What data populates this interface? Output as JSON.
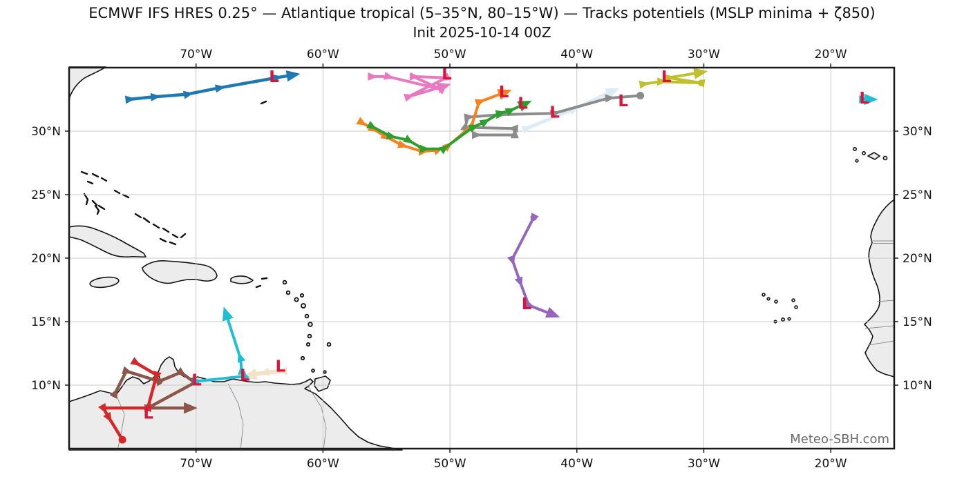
{
  "figure": {
    "title": "ECMWF IFS HRES 0.25° — Atlantique tropical (5–35°N, 80–15°W) — Tracks potentiels (MSLP minima + ζ850)",
    "subtitle": "Init 2025-10-14 00Z",
    "watermark": "Meteo-SBH.com"
  },
  "axes": {
    "extent": {
      "west_lon": 80,
      "east_lon": 15,
      "south_lat": 5,
      "north_lat": 35
    },
    "lon_ticks": [
      {
        "value": 70,
        "label": "70°W"
      },
      {
        "value": 60,
        "label": "60°W"
      },
      {
        "value": 50,
        "label": "50°W"
      },
      {
        "value": 40,
        "label": "40°W"
      },
      {
        "value": 30,
        "label": "30°W"
      },
      {
        "value": 20,
        "label": "20°W"
      }
    ],
    "lat_ticks": [
      {
        "value": 30,
        "label": "30°N"
      },
      {
        "value": 25,
        "label": "25°N"
      },
      {
        "value": 20,
        "label": "20°N"
      },
      {
        "value": 15,
        "label": "15°N"
      },
      {
        "value": 10,
        "label": "10°N"
      }
    ],
    "grid": true,
    "grid_color": "#c9c9c9"
  },
  "land": {
    "fill": "#ececec",
    "coast_color": "#111111",
    "border_color": "#8a8a8a"
  },
  "chart_data": {
    "type": "map-tracks",
    "projection": "equirectangular",
    "units": "points are [longitude_degW, latitude_degN]",
    "extent": {
      "west": 80,
      "east": 15,
      "south": 5,
      "north": 35
    },
    "low_marker": {
      "symbol": "L",
      "color": "#dc143c"
    },
    "tracks": [
      {
        "id": "wheat",
        "color": "#f3e2c8",
        "width": 6,
        "end": "arrow",
        "points": [
          [
            63.1,
            11.1
          ],
          [
            64.5,
            11.0
          ],
          [
            65.6,
            10.8
          ]
        ],
        "lows": [
          [
            63.3,
            11.5
          ]
        ],
        "dots": []
      },
      {
        "id": "pale-blue",
        "color": "#dcebf8",
        "width": 5,
        "end": "arrow",
        "points": [
          [
            44.0,
            30.2
          ],
          [
            40.3,
            31.7
          ],
          [
            37.3,
            33.1
          ]
        ],
        "lows": [],
        "dots": []
      },
      {
        "id": "gray",
        "color": "#8c8c8c",
        "width": 4,
        "end": "dot",
        "points": [
          [
            48.0,
            29.7
          ],
          [
            44.9,
            29.7
          ],
          [
            44.9,
            30.2
          ],
          [
            48.8,
            30.3
          ],
          [
            48.6,
            31.1
          ],
          [
            46.1,
            31.3
          ],
          [
            41.8,
            31.4
          ],
          [
            37.5,
            32.6
          ],
          [
            35.0,
            32.8
          ]
        ],
        "lows": [
          [
            41.7,
            31.5
          ],
          [
            36.3,
            32.4
          ]
        ],
        "dots": []
      },
      {
        "id": "pink",
        "color": "#e879c1",
        "width": 4,
        "end": "arrow",
        "points": [
          [
            56.2,
            34.3
          ],
          [
            54.9,
            34.3
          ],
          [
            50.7,
            33.3
          ],
          [
            52.9,
            34.3
          ],
          [
            50.3,
            34.2
          ],
          [
            53.3,
            32.7
          ],
          [
            50.6,
            33.5
          ]
        ],
        "lows": [
          [
            50.2,
            34.5
          ]
        ],
        "dots": []
      },
      {
        "id": "orange",
        "color": "#f5821f",
        "width": 4,
        "end": "arrow",
        "points": [
          [
            57.0,
            30.7
          ],
          [
            56.1,
            30.2
          ],
          [
            55.1,
            29.6
          ],
          [
            53.8,
            28.9
          ],
          [
            52.2,
            28.4
          ],
          [
            51.0,
            28.5
          ],
          [
            50.2,
            28.8
          ],
          [
            48.3,
            30.4
          ],
          [
            47.7,
            32.3
          ],
          [
            45.8,
            33.0
          ]
        ],
        "lows": [
          [
            45.7,
            33.1
          ]
        ],
        "dots": []
      },
      {
        "id": "green",
        "color": "#2ca02c",
        "width": 4,
        "end": "arrow",
        "points": [
          [
            56.2,
            30.4
          ],
          [
            54.7,
            29.6
          ],
          [
            53.3,
            29.3
          ],
          [
            52.1,
            28.6
          ],
          [
            50.5,
            28.6
          ],
          [
            48.2,
            30.3
          ],
          [
            47.3,
            30.7
          ],
          [
            46.1,
            31.4
          ],
          [
            45.3,
            31.6
          ],
          [
            44.2,
            32.1
          ]
        ],
        "lows": [
          [
            44.2,
            32.2
          ]
        ],
        "dots": []
      },
      {
        "id": "olive",
        "color": "#bfc02c",
        "width": 4,
        "end": "arrow",
        "points": [
          [
            34.8,
            33.7
          ],
          [
            33.4,
            33.9
          ],
          [
            30.2,
            33.8
          ],
          [
            32.8,
            34.2
          ],
          [
            30.4,
            34.6
          ]
        ],
        "lows": [
          [
            32.9,
            34.3
          ]
        ],
        "dots": [
          [
            30.2,
            33.8
          ]
        ]
      },
      {
        "id": "blue",
        "color": "#1f77b4",
        "width": 4.5,
        "end": "arrow",
        "points": [
          [
            75.3,
            32.5
          ],
          [
            73.3,
            32.7
          ],
          [
            70.7,
            32.9
          ],
          [
            68.2,
            33.4
          ],
          [
            63.7,
            34.2
          ],
          [
            62.5,
            34.4
          ]
        ],
        "lows": [
          [
            63.8,
            34.3
          ]
        ],
        "dots": []
      },
      {
        "id": "brown",
        "color": "#8c564b",
        "width": 4.5,
        "end": "arrow",
        "points": [
          [
            76.4,
            9.3
          ],
          [
            75.5,
            11.1
          ],
          [
            72.9,
            10.3
          ],
          [
            71.2,
            11.0
          ],
          [
            70.1,
            10.2
          ],
          [
            73.8,
            8.2
          ],
          [
            70.6,
            8.2
          ]
        ],
        "lows": [],
        "dots": [
          [
            72.9,
            10.3
          ]
        ]
      },
      {
        "id": "red",
        "color": "#d62728",
        "width": 4.5,
        "end": "dot",
        "points": [
          [
            74.8,
            11.8
          ],
          [
            73.1,
            10.8
          ],
          [
            73.8,
            8.2
          ],
          [
            77.3,
            8.2
          ],
          [
            76.9,
            7.5
          ],
          [
            75.8,
            5.7
          ]
        ],
        "lows": [
          [
            73.7,
            7.8
          ]
        ],
        "dots": []
      },
      {
        "id": "cyan",
        "color": "#1fbfd3",
        "width": 4,
        "end": "arrow",
        "points": [
          [
            70.0,
            10.3
          ],
          [
            66.2,
            10.7
          ],
          [
            66.4,
            11.1
          ],
          [
            66.5,
            12.1
          ],
          [
            67.6,
            15.5
          ]
        ],
        "lows": [
          [
            69.9,
            10.4
          ],
          [
            66.1,
            10.8
          ]
        ],
        "dots": []
      },
      {
        "id": "cyan-east",
        "color": "#1fbfd3",
        "width": 4,
        "end": "arrow",
        "points": [
          [
            17.5,
            32.5
          ],
          [
            17.0,
            32.5
          ]
        ],
        "lows": [
          [
            17.3,
            32.6
          ]
        ],
        "dots": []
      },
      {
        "id": "purple",
        "color": "#9467bd",
        "width": 4,
        "end": "arrow",
        "points": [
          [
            43.4,
            23.2
          ],
          [
            45.1,
            19.9
          ],
          [
            44.5,
            18.2
          ],
          [
            43.8,
            16.3
          ],
          [
            42.0,
            15.6
          ]
        ],
        "lows": [
          [
            43.9,
            16.4
          ]
        ],
        "dots": [
          [
            43.4,
            23.2
          ]
        ]
      }
    ]
  }
}
